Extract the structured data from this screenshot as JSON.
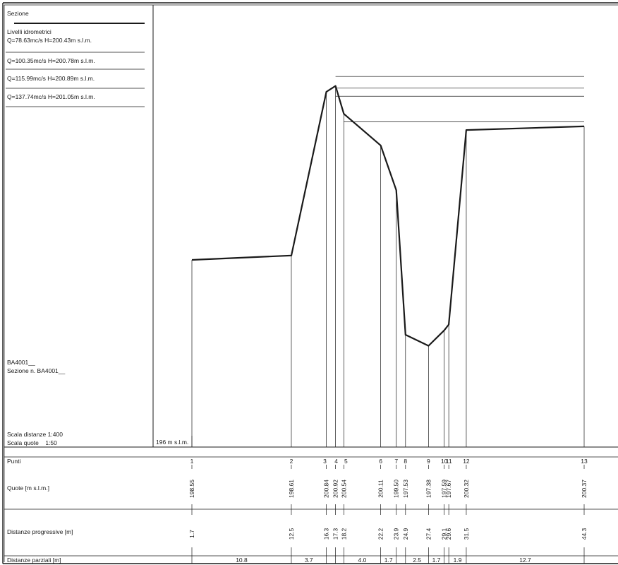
{
  "panel": {
    "section_label": "Sezione",
    "levels_heading": "Livelli idrometrici",
    "levels": [
      "Q=78.63mc/s  H=200.43m s.l.m.",
      "Q=100.35mc/s  H=200.78m s.l.m.",
      "Q=115.99mc/s  H=200.89m s.l.m.",
      "Q=137.74mc/s  H=201.05m s.l.m."
    ],
    "section_code": "BA4001__",
    "section_name": "Sezione n. BA4001__",
    "scale_distances": "Scala distanze 1:400",
    "scale_heights": "Scala quote    1:50"
  },
  "chart_data": {
    "type": "line",
    "datum_label": "196 m s.l.m.",
    "datum": 196,
    "points": [
      {
        "id": "1",
        "elevation": "198.55",
        "progressive": "1.7"
      },
      {
        "id": "2",
        "elevation": "198.61",
        "progressive": "12.5"
      },
      {
        "id": "3",
        "elevation": "200.84",
        "progressive": "16.3"
      },
      {
        "id": "4",
        "elevation": "200.92",
        "progressive": "17.3"
      },
      {
        "id": "5",
        "elevation": "200.54",
        "progressive": "18.2"
      },
      {
        "id": "6",
        "elevation": "200.11",
        "progressive": "22.2"
      },
      {
        "id": "7",
        "elevation": "199.50",
        "progressive": "23.9"
      },
      {
        "id": "8",
        "elevation": "197.53",
        "progressive": "24.9"
      },
      {
        "id": "9",
        "elevation": "197.38",
        "progressive": "27.4"
      },
      {
        "id": "10",
        "elevation": "197.59",
        "progressive": "29.1"
      },
      {
        "id": "11",
        "elevation": "197.67",
        "progressive": "29.6"
      },
      {
        "id": "12",
        "elevation": "200.32",
        "progressive": "31.5"
      },
      {
        "id": "13",
        "elevation": "200.37",
        "progressive": "44.3"
      }
    ],
    "water_levels": [
      {
        "h": 200.43,
        "from": 18.2,
        "to": 44.3
      },
      {
        "h": 200.78,
        "from": 17.3,
        "to": 44.3
      },
      {
        "h": 200.89,
        "from": 17.3,
        "to": 44.3
      },
      {
        "h": 201.05,
        "from": 17.3,
        "to": 44.3
      }
    ],
    "partial_distances": [
      {
        "label": "10.8",
        "from": 1.7,
        "to": 12.5
      },
      {
        "label": "3.7",
        "from": 12.5,
        "to": 16.3
      },
      {
        "label": "",
        "from": 16.3,
        "to": 17.3
      },
      {
        "label": "",
        "from": 17.3,
        "to": 18.2
      },
      {
        "label": "4.0",
        "from": 18.2,
        "to": 22.2
      },
      {
        "label": "1.7",
        "from": 22.2,
        "to": 23.9
      },
      {
        "label": "",
        "from": 23.9,
        "to": 24.9
      },
      {
        "label": "2.5",
        "from": 24.9,
        "to": 27.4
      },
      {
        "label": "1.7",
        "from": 27.4,
        "to": 29.1
      },
      {
        "label": "",
        "from": 29.1,
        "to": 29.6
      },
      {
        "label": "1.9",
        "from": 29.6,
        "to": 31.5
      },
      {
        "label": "12.7",
        "from": 31.5,
        "to": 44.3
      }
    ]
  },
  "table": {
    "row_points": "Punti",
    "row_elevations": "Quote [m s.l.m.]",
    "row_progressive": "Distanze progressive [m]",
    "row_partial": "Distanze parziali [m]"
  }
}
